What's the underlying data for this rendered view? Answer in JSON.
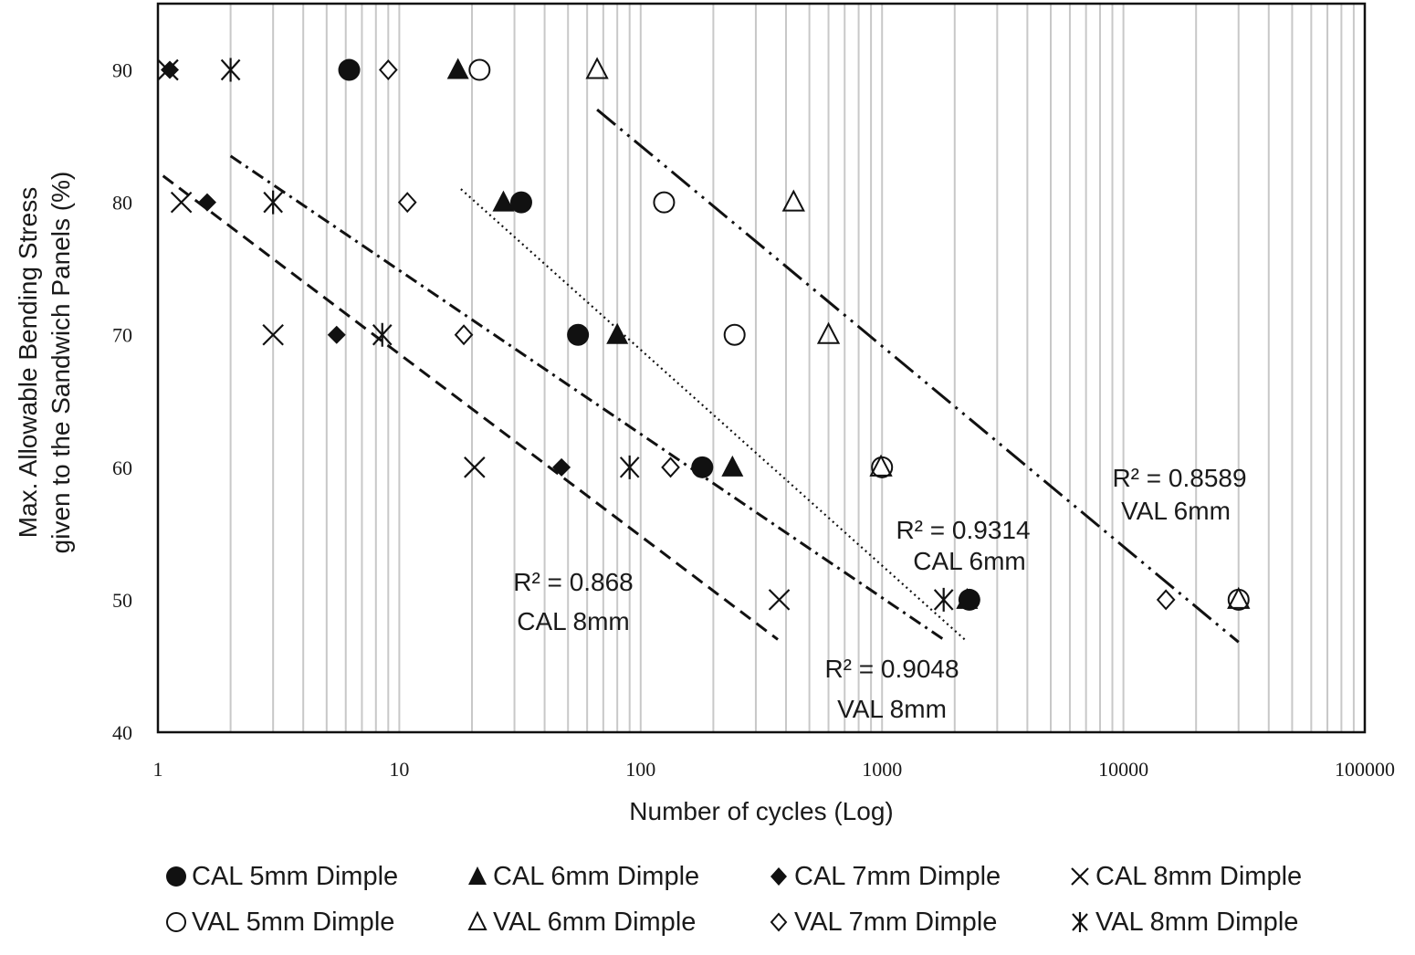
{
  "chart_data": {
    "type": "scatter",
    "xscale": "log",
    "xlabel": "Number of cycles (Log)",
    "ylabel_line1": "Max. Allowable Bending Stress",
    "ylabel_line2": "given to the Sandwich Panels (%)",
    "xlim": [
      1,
      100000
    ],
    "ylim": [
      40,
      95
    ],
    "xticks": [
      1,
      10,
      100,
      1000,
      10000,
      100000
    ],
    "xtick_labels": [
      "1",
      "10",
      "100",
      "1000",
      "10000",
      "100000"
    ],
    "yticks": [
      40,
      50,
      60,
      70,
      80,
      90
    ],
    "ytick_labels": [
      "40",
      "50",
      "60",
      "70",
      "80",
      "90"
    ],
    "grid": "x-minor-log",
    "series": [
      {
        "name": "CAL 5mm Dimple",
        "marker": "circle-filled",
        "x": [
          6.2,
          32,
          55,
          180,
          2300
        ],
        "y": [
          90,
          80,
          70,
          60,
          50
        ]
      },
      {
        "name": "CAL 6mm Dimple",
        "marker": "triangle-filled",
        "x": [
          17.5,
          27,
          80,
          240,
          2250
        ],
        "y": [
          90,
          80,
          70,
          60,
          50
        ]
      },
      {
        "name": "CAL 7mm Dimple",
        "marker": "diamond-filled",
        "x": [
          1.12,
          1.6,
          5.5,
          47,
          2280
        ],
        "y": [
          90,
          80,
          70,
          60,
          50
        ]
      },
      {
        "name": "CAL 8mm Dimple",
        "marker": "x",
        "x": [
          1.1,
          1.25,
          3,
          20.5,
          375
        ],
        "y": [
          90,
          80,
          70,
          60,
          50
        ]
      },
      {
        "name": "VAL 5mm Dimple",
        "marker": "circle-open",
        "x": [
          21.5,
          125,
          245,
          1000,
          30000
        ],
        "y": [
          90,
          80,
          70,
          60,
          50
        ]
      },
      {
        "name": "VAL 6mm Dimple",
        "marker": "triangle-open",
        "x": [
          66,
          430,
          600,
          990,
          30000
        ],
        "y": [
          90,
          80,
          70,
          60,
          50
        ]
      },
      {
        "name": "VAL 7mm Dimple",
        "marker": "diamond-open",
        "x": [
          9,
          10.8,
          18.5,
          133,
          15000
        ],
        "y": [
          90,
          80,
          70,
          60,
          50
        ]
      },
      {
        "name": "VAL 8mm Dimple",
        "marker": "asterisk",
        "x": [
          2,
          3,
          8.5,
          90,
          1800
        ],
        "y": [
          90,
          80,
          70,
          60,
          50
        ]
      }
    ],
    "trendlines": [
      {
        "name": "CAL 8mm",
        "style": "dashed",
        "x": [
          1.05,
          370
        ],
        "y": [
          82,
          47
        ]
      },
      {
        "name": "VAL 8mm",
        "style": "dash-dot",
        "x": [
          2,
          1800
        ],
        "y": [
          83.5,
          47
        ]
      },
      {
        "name": "CAL 6mm",
        "style": "dotted",
        "x": [
          18,
          2200
        ],
        "y": [
          81,
          47
        ]
      },
      {
        "name": "VAL 6mm",
        "style": "long-dash-dot",
        "x": [
          66,
          30000
        ],
        "y": [
          87,
          46.8
        ]
      }
    ],
    "annotations": [
      {
        "r2": "R² = 0.868",
        "label": "CAL 8mm"
      },
      {
        "r2": "R² = 0.9048",
        "label": "VAL 8mm"
      },
      {
        "r2": "R² = 0.9314",
        "label": "CAL 6mm"
      },
      {
        "r2": "R² = 0.8589",
        "label": "VAL 6mm"
      }
    ]
  }
}
